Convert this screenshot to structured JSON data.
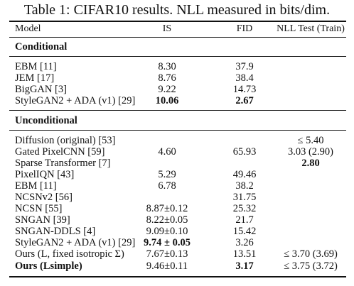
{
  "caption": "Table 1: CIFAR10 results. NLL measured in bits/dim.",
  "columns": {
    "model": "Model",
    "is": "IS",
    "fid": "FID",
    "nll": "NLL Test (Train)"
  },
  "sections": {
    "conditional": "Conditional",
    "unconditional": "Unconditional"
  },
  "conditional_rows": [
    {
      "model": "EBM [11]",
      "is": "8.30",
      "fid": "37.9",
      "nll": ""
    },
    {
      "model": "JEM [17]",
      "is": "8.76",
      "fid": "38.4",
      "nll": ""
    },
    {
      "model": "BigGAN [3]",
      "is": "9.22",
      "fid": "14.73",
      "nll": ""
    },
    {
      "model": "StyleGAN2 + ADA (v1) [29]",
      "is": "10.06",
      "fid": "2.67",
      "nll": ""
    }
  ],
  "unconditional_rows": [
    {
      "model": "Diffusion (original) [53]",
      "is": "",
      "fid": "",
      "nll": "≤ 5.40"
    },
    {
      "model": "Gated PixelCNN [59]",
      "is": "4.60",
      "fid": "65.93",
      "nll": "3.03 (2.90)"
    },
    {
      "model": "Sparse Transformer [7]",
      "is": "",
      "fid": "",
      "nll": "2.80"
    },
    {
      "model": "PixelIQN [43]",
      "is": "5.29",
      "fid": "49.46",
      "nll": ""
    },
    {
      "model": "EBM [11]",
      "is": "6.78",
      "fid": "38.2",
      "nll": ""
    },
    {
      "model": "NCSNv2 [56]",
      "is": "",
      "fid": "31.75",
      "nll": ""
    },
    {
      "model": "NCSN [55]",
      "is": "8.87±0.12",
      "fid": "25.32",
      "nll": ""
    },
    {
      "model": "SNGAN [39]",
      "is": "8.22±0.05",
      "fid": "21.7",
      "nll": ""
    },
    {
      "model": "SNGAN-DDLS [4]",
      "is": "9.09±0.10",
      "fid": "15.42",
      "nll": ""
    },
    {
      "model": "StyleGAN2 + ADA (v1) [29]",
      "is": "9.74 ± 0.05",
      "fid": "3.26",
      "nll": ""
    },
    {
      "model": "Ours (L, fixed isotropic Σ)",
      "is": "7.67±0.13",
      "fid": "13.51",
      "nll": "≤ 3.70 (3.69)"
    },
    {
      "model": "Ours (Lsimple)",
      "is": "9.46±0.11",
      "fid": "3.17",
      "nll": "≤ 3.75 (3.72)"
    }
  ]
}
